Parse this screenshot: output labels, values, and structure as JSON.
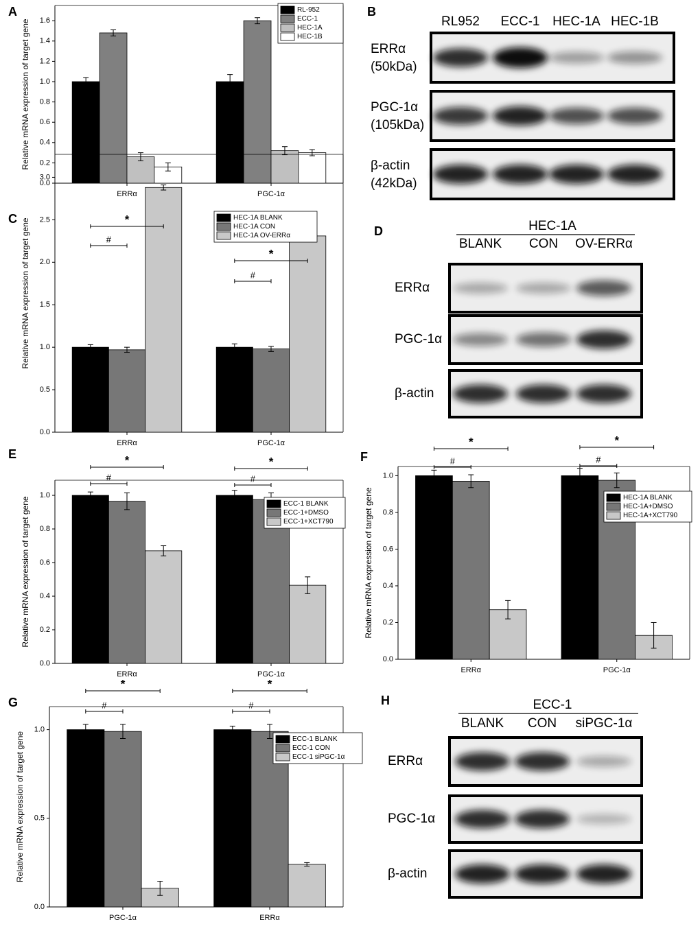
{
  "chart_data": [
    {
      "type": "bar",
      "panel": "A",
      "y_label": "Relative mRNA expression of target gene",
      "categories": [
        "ERRα",
        "PGC-1α"
      ],
      "series": [
        {
          "name": "RL-952",
          "color": "#000000",
          "values": [
            1.0,
            1.0
          ],
          "errors": [
            0.04,
            0.07
          ]
        },
        {
          "name": "ECC-1",
          "color": "#808080",
          "values": [
            1.48,
            1.6
          ],
          "errors": [
            0.03,
            0.03
          ]
        },
        {
          "name": "HEC-1A",
          "color": "#c0c0c0",
          "values": [
            0.26,
            0.32
          ],
          "errors": [
            0.04,
            0.04
          ]
        },
        {
          "name": "HEC-1B",
          "color": "#ffffff",
          "values": [
            0.16,
            0.3
          ],
          "errors": [
            0.04,
            0.03
          ]
        }
      ],
      "ylim": [
        0,
        1.75
      ],
      "yticks": [
        {
          "value": 0,
          "label": "0.0"
        },
        {
          "value": 0.2,
          "label": "0.2"
        },
        {
          "value": 0.4,
          "label": "0.4"
        },
        {
          "value": 0.6,
          "label": "0.6"
        },
        {
          "value": 0.8,
          "label": "0.8"
        },
        {
          "value": 1,
          "label": "1.0"
        },
        {
          "value": 1.2,
          "label": "1.2"
        },
        {
          "value": 1.4,
          "label": "1.4"
        },
        {
          "value": 1.6,
          "label": "1.6"
        }
      ]
    },
    {
      "type": "bar",
      "panel": "C",
      "y_label": "Relative mRNA expression of target gene",
      "categories": [
        "ERRα",
        "PGC-1α"
      ],
      "series": [
        {
          "name": "HEC-1A BLANK",
          "color": "#000000",
          "values": [
            1.0,
            1.0
          ],
          "errors": [
            0.03,
            0.04
          ]
        },
        {
          "name": "HEC-1A CON",
          "color": "#777777",
          "values": [
            0.97,
            0.98
          ],
          "errors": [
            0.03,
            0.03
          ]
        },
        {
          "name": "HEC-1A OV-ERRα",
          "color": "#c8c8c8",
          "values": [
            2.88,
            2.31
          ],
          "errors": [
            0.03,
            0.02
          ]
        }
      ],
      "ylim": [
        0,
        3.27
      ],
      "yticks": [
        {
          "value": 0,
          "label": "0.0"
        },
        {
          "value": 0.5,
          "label": "0.5"
        },
        {
          "value": 1,
          "label": "1.0"
        },
        {
          "value": 1.5,
          "label": "1.5"
        },
        {
          "value": 2,
          "label": "2.0"
        },
        {
          "value": 2.5,
          "label": "2.5"
        },
        {
          "value": 3,
          "label": "3.0"
        }
      ],
      "annotations": [
        "*",
        "#",
        "*",
        "#"
      ]
    },
    {
      "type": "bar",
      "panel": "E",
      "y_label": "Relative mRNA expression of target gene",
      "categories": [
        "ERRα",
        "PGC-1α"
      ],
      "series": [
        {
          "name": "ECC-1 BLANK",
          "color": "#000000",
          "values": [
            1.0,
            1.0
          ],
          "errors": [
            0.02,
            0.03
          ]
        },
        {
          "name": "ECC-1+DMSO",
          "color": "#777777",
          "values": [
            0.965,
            0.975
          ],
          "errors": [
            0.05,
            0.04
          ]
        },
        {
          "name": "ECC-1+XCT790",
          "color": "#c8c8c8",
          "values": [
            0.67,
            0.465
          ],
          "errors": [
            0.03,
            0.05
          ]
        }
      ],
      "ylim": [
        0,
        1.09
      ],
      "yticks": [
        {
          "value": 0,
          "label": "0.0"
        },
        {
          "value": 0.2,
          "label": "0.2"
        },
        {
          "value": 0.4,
          "label": "0.4"
        },
        {
          "value": 0.6,
          "label": "0.6"
        },
        {
          "value": 0.8,
          "label": "0.8"
        },
        {
          "value": 1,
          "label": "1.0"
        }
      ],
      "annotations": [
        "*",
        "#",
        "*",
        "#"
      ]
    },
    {
      "type": "bar",
      "panel": "F",
      "y_label": "Relative mRNA expression of target gene",
      "categories": [
        "ERRα",
        "PGC-1α"
      ],
      "series": [
        {
          "name": "HEC-1A BLANK",
          "color": "#000000",
          "values": [
            1.0,
            1.0
          ],
          "errors": [
            0.03,
            0.04
          ]
        },
        {
          "name": "HEC-1A+DMSO",
          "color": "#777777",
          "values": [
            0.97,
            0.975
          ],
          "errors": [
            0.035,
            0.04
          ]
        },
        {
          "name": "HEC-1A+XCT790",
          "color": "#c8c8c8",
          "values": [
            0.27,
            0.13
          ],
          "errors": [
            0.05,
            0.07
          ]
        }
      ],
      "ylim": [
        0,
        1.05
      ],
      "yticks": [
        {
          "value": 0,
          "label": "0.0"
        },
        {
          "value": 0.2,
          "label": "0.2"
        },
        {
          "value": 0.4,
          "label": "0.4"
        },
        {
          "value": 0.6,
          "label": "0.6"
        },
        {
          "value": 0.8,
          "label": "0.8"
        },
        {
          "value": 1,
          "label": "1.0"
        }
      ],
      "annotations": [
        "*",
        "#",
        "*",
        "#"
      ]
    },
    {
      "type": "bar",
      "panel": "G",
      "y_label": "Relative mRNA expression of target gene",
      "categories": [
        "PGC-1α",
        "ERRα"
      ],
      "series": [
        {
          "name": "ECC-1 BLANK",
          "color": "#000000",
          "values": [
            1.0,
            1.0
          ],
          "errors": [
            0.03,
            0.02
          ]
        },
        {
          "name": "ECC-1 CON",
          "color": "#777777",
          "values": [
            0.99,
            0.99
          ],
          "errors": [
            0.04,
            0.04
          ]
        },
        {
          "name": "ECC-1 siPGC-1α",
          "color": "#c8c8c8",
          "values": [
            0.105,
            0.24
          ],
          "errors": [
            0.04,
            0.01
          ]
        }
      ],
      "ylim": [
        0,
        1.13
      ],
      "yticks": [
        {
          "value": 0,
          "label": "0.0"
        },
        {
          "value": 0.5,
          "label": "0.5"
        },
        {
          "value": 1,
          "label": "1.0"
        }
      ],
      "annotations": [
        "*",
        "#",
        "*",
        "#"
      ]
    }
  ],
  "blots": [
    {
      "panel": "B",
      "lanes": [
        "RL952",
        "ECC-1",
        "HEC-1A",
        "HEC-1B"
      ],
      "rows": [
        {
          "name": "ERRα",
          "size": "(50kDa)"
        },
        {
          "name": "PGC-1α",
          "size": "(105kDa)"
        },
        {
          "name": "β-actin",
          "size": "(42kDa)"
        }
      ]
    },
    {
      "panel": "D",
      "header": "HEC-1A",
      "lanes": [
        "BLANK",
        "CON",
        "OV-ERRα"
      ],
      "rows": [
        {
          "name": "ERRα"
        },
        {
          "name": "PGC-1α"
        },
        {
          "name": "β-actin"
        }
      ]
    },
    {
      "panel": "H",
      "header": "ECC-1",
      "lanes": [
        "BLANK",
        "CON",
        "siPGC-1α"
      ],
      "rows": [
        {
          "name": "ERRα"
        },
        {
          "name": "PGC-1α"
        },
        {
          "name": "β-actin"
        }
      ]
    }
  ]
}
